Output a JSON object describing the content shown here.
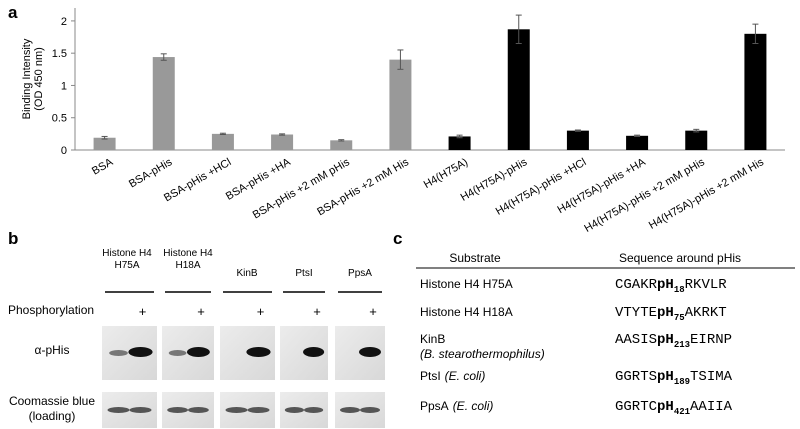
{
  "panels": {
    "a": "a",
    "b": "b",
    "c": "c"
  },
  "chart_data": {
    "type": "bar",
    "ylabel": [
      "Binding Intensity",
      "(OD 450 nm)"
    ],
    "categories": [
      "BSA",
      "BSA-pHis",
      "BSA-pHis +HCl",
      "BSA-pHis +HA",
      "BSA-pHis +2 mM pHis",
      "BSA-pHis +2 mM His",
      "H4(H75A)",
      "H4(H75A)-pHis",
      "H4(H75A)-pHis +HCl",
      "H4(H75A)-pHis +HA",
      "H4(H75A)-pHis +2 mM pHis",
      "H4(H75A)-pHis +2 mM His"
    ],
    "values": [
      0.19,
      1.44,
      0.25,
      0.24,
      0.15,
      1.4,
      0.21,
      1.87,
      0.3,
      0.22,
      0.3,
      1.8
    ],
    "errors": [
      0.02,
      0.05,
      0.01,
      0.01,
      0.01,
      0.15,
      0.02,
      0.22,
      0.01,
      0.01,
      0.02,
      0.15
    ],
    "colors": [
      "#999999",
      "#999999",
      "#999999",
      "#999999",
      "#999999",
      "#999999",
      "#000000",
      "#000000",
      "#000000",
      "#000000",
      "#000000",
      "#000000"
    ],
    "ylim": [
      0,
      2.2
    ],
    "yticks": [
      0,
      0.5,
      1,
      1.5,
      2
    ],
    "grid": false
  },
  "blot": {
    "columns": [
      [
        "Histone H4",
        "H75A"
      ],
      [
        "Histone H4",
        "H18A"
      ],
      [
        "KinB"
      ],
      [
        "PtsI"
      ],
      [
        "PpsA"
      ]
    ],
    "phosphorylation_label": "Phosphorylation",
    "plus": "+",
    "rows": [
      [
        "α-pHis"
      ],
      [
        "Coomassie blue",
        "(loading)"
      ]
    ]
  },
  "table": {
    "header": [
      "Substrate",
      "Sequence around pHis"
    ],
    "rows": [
      {
        "name": "Histone H4 H75A",
        "seq": [
          "CGAKR",
          "pH",
          "18",
          "RKVLR"
        ]
      },
      {
        "name": "Histone H4 H18A",
        "seq": [
          "VTYTE",
          "pH",
          "75",
          "AKRKT"
        ]
      },
      {
        "name": "KinB",
        "organism": "(B. stearothermophilus)",
        "seq": [
          "AASIS",
          "pH",
          "213",
          "EIRNP"
        ]
      },
      {
        "name": "PtsI",
        "organism": "(E. coli)",
        "seq": [
          "GGRTS",
          "pH",
          "189",
          "TSIMA"
        ]
      },
      {
        "name": "PpsA",
        "organism": "(E. coli)",
        "seq": [
          "GGRTC",
          "pH",
          "421",
          "AAIIA"
        ]
      }
    ]
  }
}
